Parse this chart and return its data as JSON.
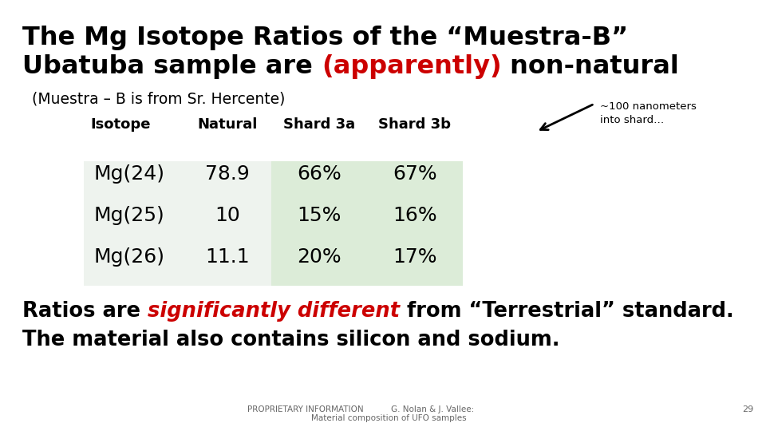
{
  "title_line1": "The Mg Isotope Ratios of the “Muestra-B”",
  "title_line2_pre": "Ubatuba sample are ",
  "title_line2_red": "(apparently)",
  "title_line2_post": " non-natural",
  "subtitle": "(Muestra – B is from Sr. Hercente)",
  "annotation_text": "~100 nanometers\ninto shard…",
  "col_headers": [
    "Isotope",
    "Natural",
    "Shard 3a",
    "Shard 3b"
  ],
  "rows": [
    [
      "Mg(24)",
      "78.9",
      "66%",
      "67%"
    ],
    [
      "Mg(25)",
      "10",
      "15%",
      "16%"
    ],
    [
      "Mg(26)",
      "11.1",
      "20%",
      "17%"
    ]
  ],
  "table_bg_cols_01": "#eef3ee",
  "table_bg_cols_23": "#dcecd8",
  "bottom_pre": "Ratios are ",
  "bottom_red": "significantly different",
  "bottom_post": " from “Terrestrial” standard.",
  "bottom_line2": "The material also contains silicon and sodium.",
  "footer_left": "PROPRIETARY INFORMATION",
  "footer_mid1": "G. Nolan & J. Vallee:",
  "footer_mid2": "Material composition of UFO samples",
  "page_num": "29",
  "bg_color": "#ffffff",
  "black": "#000000",
  "red": "#cc0000",
  "gray": "#666666"
}
